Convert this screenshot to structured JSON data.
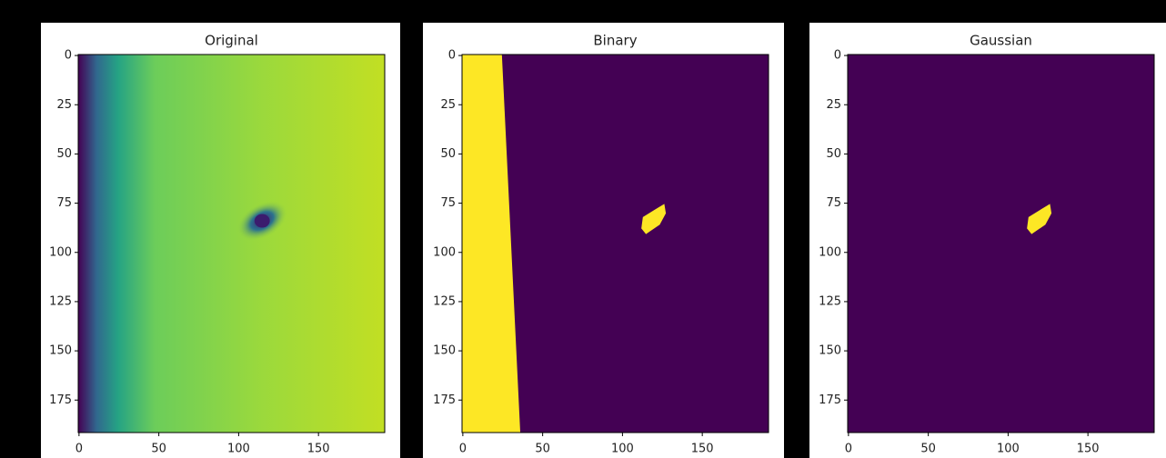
{
  "chart_data": [
    {
      "type": "image",
      "title": "Original",
      "xlim": [
        -0.5,
        191.5
      ],
      "ylim": [
        -0.5,
        191.5
      ],
      "y_inverted": true,
      "xticks": [
        0,
        50,
        100,
        150
      ],
      "yticks": [
        0,
        25,
        50,
        75,
        100,
        125,
        150,
        175
      ]
    },
    {
      "type": "image",
      "title": "Binary",
      "xlim": [
        -0.5,
        191.5
      ],
      "ylim": [
        -0.5,
        191.5
      ],
      "y_inverted": true,
      "xticks": [
        0,
        50,
        100,
        150
      ],
      "yticks": [
        0,
        25,
        50,
        75,
        100,
        125,
        150,
        175
      ]
    },
    {
      "type": "image",
      "title": "Gaussian",
      "xlim": [
        -0.5,
        191.5
      ],
      "ylim": [
        -0.5,
        191.5
      ],
      "y_inverted": true,
      "xticks": [
        0,
        50,
        100,
        150
      ],
      "yticks": [
        0,
        25,
        50,
        75,
        100,
        125,
        150,
        175
      ]
    }
  ]
}
